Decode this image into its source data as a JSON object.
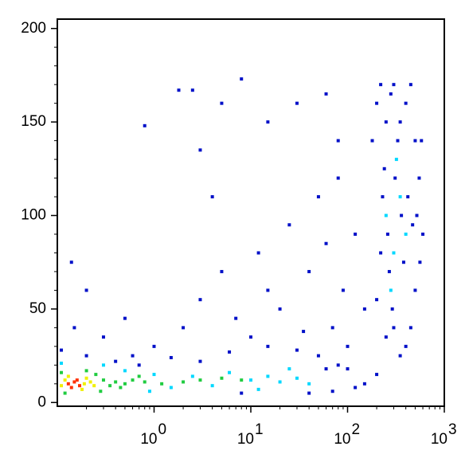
{
  "chart_data": {
    "type": "scatter",
    "xlim": [
      0.1,
      1000
    ],
    "ylim": [
      -2,
      205
    ],
    "xlog": true,
    "xticks": [
      {
        "value": 1,
        "label": "10",
        "exponent": "0"
      },
      {
        "value": 10,
        "label": "10",
        "exponent": "1"
      },
      {
        "value": 100,
        "label": "10",
        "exponent": "2"
      },
      {
        "value": 1000,
        "label": "10",
        "exponent": "3"
      }
    ],
    "yticks": [
      0,
      50,
      100,
      150,
      200
    ],
    "series": [
      {
        "color": "#0010c8",
        "x": [
          0.11,
          0.15,
          0.2,
          0.14,
          0.3,
          0.6,
          0.8,
          1.8,
          2.5,
          4,
          8,
          3,
          5,
          15,
          30,
          60,
          80,
          0.5,
          1,
          2,
          3,
          5,
          7,
          10,
          12,
          15,
          20,
          25,
          40,
          50,
          60,
          70,
          80,
          90,
          100,
          120,
          150,
          180,
          200,
          220,
          250,
          280,
          300,
          350,
          400,
          450,
          500,
          550,
          600,
          500,
          450,
          400,
          350,
          300,
          250,
          200,
          220,
          230,
          240,
          260,
          270,
          290,
          310,
          330,
          360,
          380,
          420,
          470,
          520,
          560,
          580,
          150,
          200,
          120,
          80,
          50,
          30,
          60,
          100,
          0.2,
          0.4,
          0.7,
          1.5,
          3,
          6,
          15,
          35,
          8,
          40,
          70
        ],
        "values": [
          28,
          40,
          60,
          75,
          35,
          25,
          148,
          167,
          167,
          110,
          173,
          135,
          160,
          150,
          160,
          165,
          140,
          45,
          30,
          40,
          55,
          70,
          45,
          35,
          80,
          60,
          50,
          95,
          70,
          110,
          85,
          40,
          120,
          60,
          30,
          90,
          50,
          140,
          160,
          170,
          150,
          165,
          170,
          150,
          160,
          170,
          140,
          120,
          90,
          60,
          40,
          30,
          25,
          40,
          35,
          55,
          80,
          110,
          125,
          90,
          70,
          50,
          120,
          140,
          100,
          75,
          110,
          95,
          100,
          75,
          140,
          10,
          15,
          8,
          20,
          25,
          28,
          18,
          18,
          25,
          22,
          20,
          24,
          22,
          27,
          30,
          38,
          5,
          5,
          6
        ]
      },
      {
        "color": "#00d8ff",
        "x": [
          0.11,
          0.5,
          1,
          1.5,
          2.5,
          4,
          6,
          10,
          15,
          20,
          30,
          40,
          25,
          12,
          0.9,
          0.3,
          250,
          300,
          350,
          280,
          320,
          400
        ],
        "values": [
          21,
          17,
          15,
          8,
          14,
          9,
          16,
          12,
          14,
          11,
          13,
          10,
          18,
          7,
          6,
          20,
          100,
          80,
          110,
          60,
          130,
          90
        ]
      },
      {
        "color": "#20cc40",
        "x": [
          0.11,
          0.3,
          0.35,
          0.25,
          0.4,
          0.5,
          0.12,
          0.28,
          0.6,
          0.45,
          0.8,
          1.2,
          0.7,
          0.2,
          2,
          3,
          5,
          8
        ],
        "values": [
          16,
          12,
          9,
          15,
          11,
          10,
          5,
          6,
          12,
          8,
          11,
          10,
          14,
          17,
          11,
          12,
          13,
          12
        ]
      },
      {
        "color": "#f0f000",
        "x": [
          0.12,
          0.19,
          0.2,
          0.11,
          0.18,
          0.22,
          0.13,
          0.24
        ],
        "values": [
          12,
          10,
          13,
          9,
          7,
          11,
          14,
          9
        ]
      },
      {
        "color": "#ff3000",
        "x": [
          0.13,
          0.15,
          0.17,
          0.14,
          0.16
        ],
        "values": [
          10,
          11,
          9,
          8,
          12
        ]
      }
    ]
  }
}
